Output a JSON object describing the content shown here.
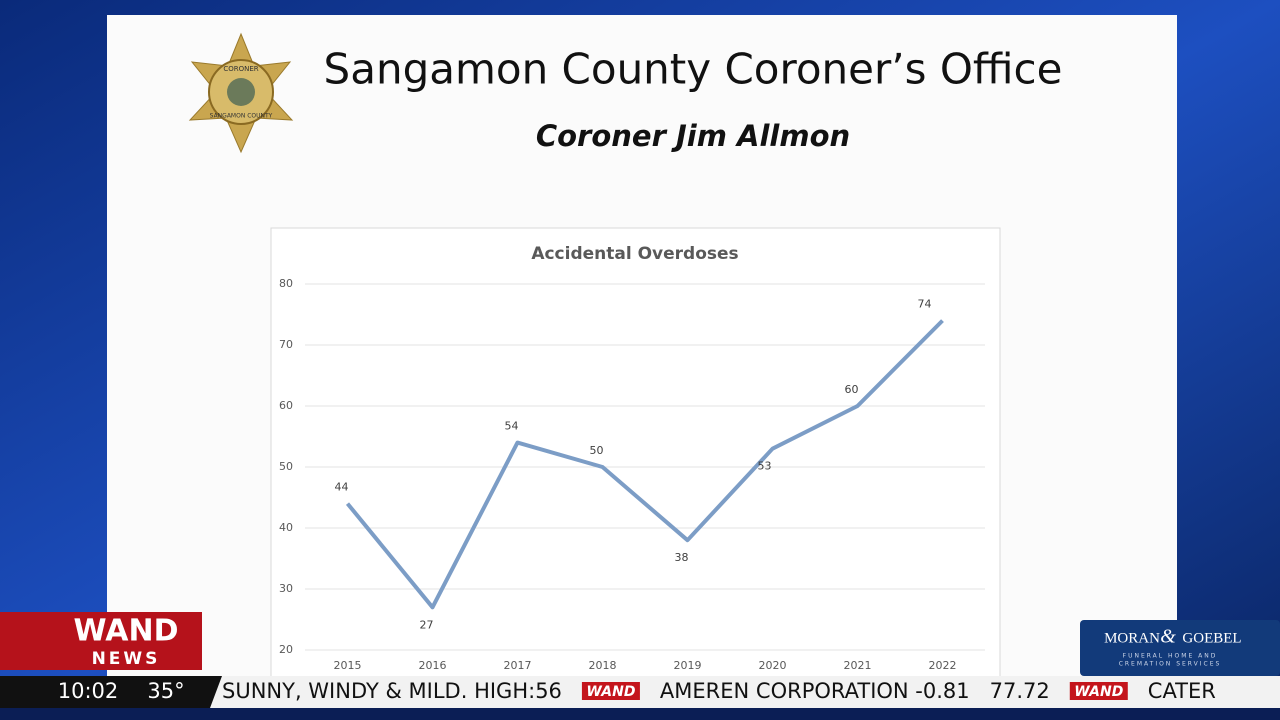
{
  "slide": {
    "title": "Sangamon County Coroner’s Office",
    "subtitle": "Coroner Jim Allmon",
    "badge_top": "CORONER",
    "badge_bottom": "SANGAMON COUNTY"
  },
  "chart_data": {
    "type": "line",
    "title": "Accidental Overdoses",
    "categories": [
      "2015",
      "2016",
      "2017",
      "2018",
      "2019",
      "2020",
      "2021",
      "2022"
    ],
    "values": [
      44,
      27,
      54,
      50,
      38,
      53,
      60,
      74
    ],
    "color": "#7c9dc6",
    "ylim": [
      20,
      80
    ],
    "yticks": [
      20,
      30,
      40,
      50,
      60,
      70,
      80
    ],
    "grid": true
  },
  "broadcast": {
    "logo_top": "WAND",
    "logo_bottom": "NEWS",
    "time": "10:02",
    "temperature": "35°",
    "ticker": [
      "SUNNY, WINDY & MILD. HIGH:56",
      "WAND",
      "AMEREN CORPORATION -0.81",
      "77.72",
      "WAND",
      "CATER"
    ],
    "sponsor_left": "MORAN",
    "sponsor_amp": "&",
    "sponsor_right": "GOEBEL",
    "sponsor_tagline_1": "FUNERAL HOME AND",
    "sponsor_tagline_2": "CREMATION SERVICES"
  }
}
